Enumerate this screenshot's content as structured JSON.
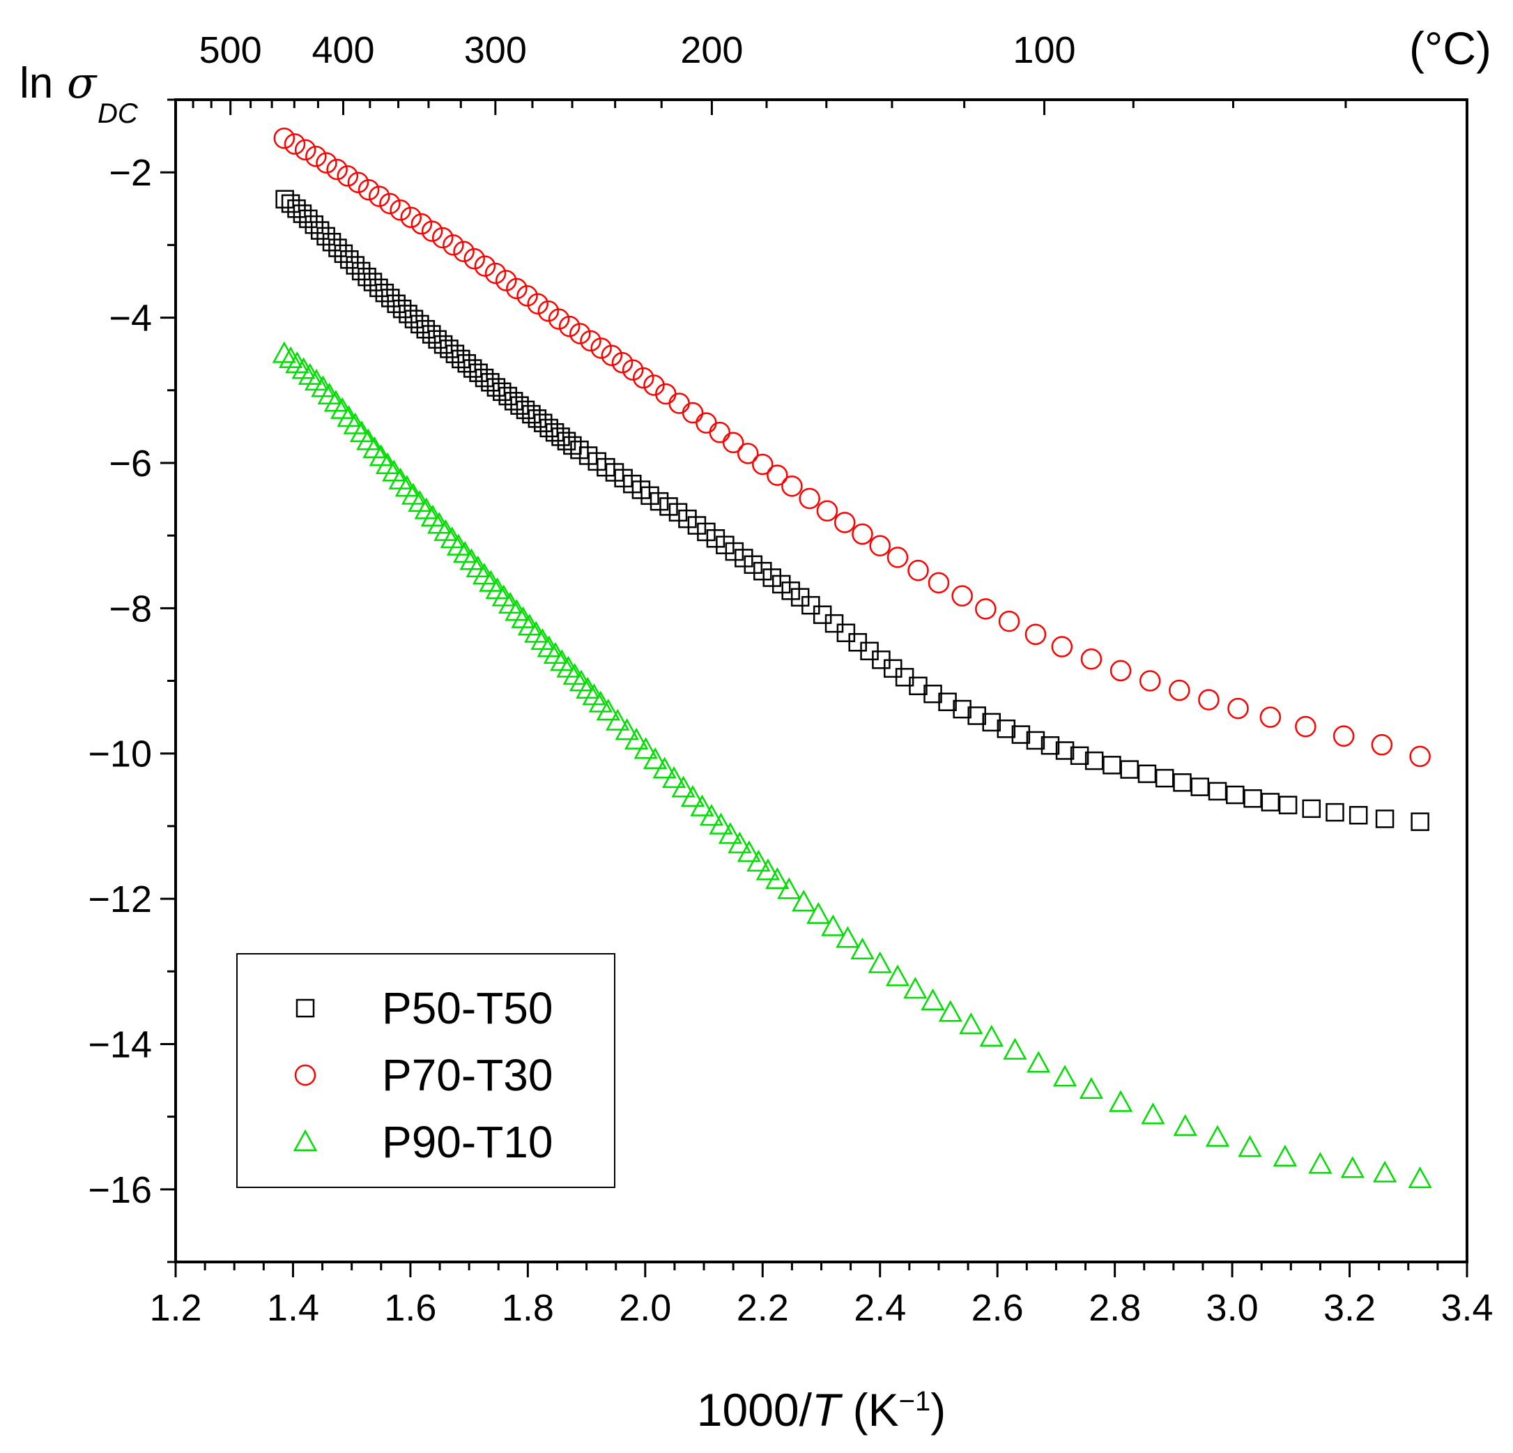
{
  "chart_data": {
    "type": "scatter",
    "x_label_prefix": "1000/",
    "x_label_var": "T",
    "x_label_unit_open": " (K",
    "x_label_exp": "−1",
    "x_label_unit_close": ")",
    "y_label_ln": "ln",
    "y_label_sigma": "σ",
    "y_label_sub": "DC",
    "top_axis_unit": "(°C)",
    "xlim": [
      1.2,
      3.4
    ],
    "ylim": [
      -17,
      -1
    ],
    "x_ticks": [
      1.2,
      1.4,
      1.6,
      1.8,
      2.0,
      2.2,
      2.4,
      2.6,
      2.8,
      3.0,
      3.2,
      3.4
    ],
    "x_tick_labels": [
      "1.2",
      "1.4",
      "1.6",
      "1.8",
      "2.0",
      "2.2",
      "2.4",
      "2.6",
      "2.8",
      "3.0",
      "3.2",
      "3.4"
    ],
    "y_ticks": [
      -2,
      -4,
      -6,
      -8,
      -10,
      -12,
      -14,
      -16
    ],
    "y_tick_labels": [
      "−2",
      "−4",
      "−6",
      "−8",
      "−10",
      "−12",
      "−14",
      "−16"
    ],
    "top_ticks_celsius": [
      500,
      400,
      300,
      200,
      100
    ],
    "top_tick_labels": [
      "500",
      "400",
      "300",
      "200",
      "100"
    ],
    "legend_position": "bottom-left",
    "series": [
      {
        "name": "P50-T50",
        "marker": "square",
        "color": "#000000",
        "points": [
          [
            1.386,
            -2.37
          ],
          [
            1.396,
            -2.43
          ],
          [
            1.406,
            -2.5
          ],
          [
            1.416,
            -2.57
          ],
          [
            1.426,
            -2.64
          ],
          [
            1.436,
            -2.72
          ],
          [
            1.446,
            -2.8
          ],
          [
            1.456,
            -2.88
          ],
          [
            1.466,
            -2.96
          ],
          [
            1.476,
            -3.04
          ],
          [
            1.486,
            -3.12
          ],
          [
            1.496,
            -3.2
          ],
          [
            1.506,
            -3.28
          ],
          [
            1.516,
            -3.36
          ],
          [
            1.526,
            -3.44
          ],
          [
            1.536,
            -3.51
          ],
          [
            1.546,
            -3.59
          ],
          [
            1.556,
            -3.66
          ],
          [
            1.566,
            -3.73
          ],
          [
            1.576,
            -3.81
          ],
          [
            1.586,
            -3.88
          ],
          [
            1.596,
            -3.95
          ],
          [
            1.606,
            -4.02
          ],
          [
            1.616,
            -4.09
          ],
          [
            1.626,
            -4.16
          ],
          [
            1.636,
            -4.23
          ],
          [
            1.646,
            -4.3
          ],
          [
            1.656,
            -4.37
          ],
          [
            1.666,
            -4.43
          ],
          [
            1.676,
            -4.5
          ],
          [
            1.686,
            -4.57
          ],
          [
            1.696,
            -4.63
          ],
          [
            1.706,
            -4.7
          ],
          [
            1.716,
            -4.76
          ],
          [
            1.726,
            -4.83
          ],
          [
            1.736,
            -4.89
          ],
          [
            1.746,
            -4.96
          ],
          [
            1.756,
            -5.02
          ],
          [
            1.766,
            -5.08
          ],
          [
            1.776,
            -5.15
          ],
          [
            1.786,
            -5.21
          ],
          [
            1.796,
            -5.27
          ],
          [
            1.806,
            -5.33
          ],
          [
            1.816,
            -5.39
          ],
          [
            1.826,
            -5.45
          ],
          [
            1.836,
            -5.52
          ],
          [
            1.846,
            -5.58
          ],
          [
            1.856,
            -5.64
          ],
          [
            1.866,
            -5.7
          ],
          [
            1.876,
            -5.76
          ],
          [
            1.888,
            -5.82
          ],
          [
            1.903,
            -5.9
          ],
          [
            1.918,
            -5.98
          ],
          [
            1.933,
            -6.06
          ],
          [
            1.948,
            -6.13
          ],
          [
            1.963,
            -6.21
          ],
          [
            1.978,
            -6.29
          ],
          [
            1.993,
            -6.37
          ],
          [
            2.008,
            -6.45
          ],
          [
            2.024,
            -6.53
          ],
          [
            2.04,
            -6.6
          ],
          [
            2.056,
            -6.68
          ],
          [
            2.072,
            -6.77
          ],
          [
            2.088,
            -6.86
          ],
          [
            2.104,
            -6.95
          ],
          [
            2.12,
            -7.04
          ],
          [
            2.136,
            -7.13
          ],
          [
            2.152,
            -7.22
          ],
          [
            2.168,
            -7.31
          ],
          [
            2.184,
            -7.4
          ],
          [
            2.2,
            -7.49
          ],
          [
            2.216,
            -7.58
          ],
          [
            2.232,
            -7.67
          ],
          [
            2.248,
            -7.76
          ],
          [
            2.264,
            -7.85
          ],
          [
            2.282,
            -7.96
          ],
          [
            2.302,
            -8.09
          ],
          [
            2.322,
            -8.21
          ],
          [
            2.342,
            -8.34
          ],
          [
            2.362,
            -8.47
          ],
          [
            2.382,
            -8.59
          ],
          [
            2.402,
            -8.71
          ],
          [
            2.422,
            -8.83
          ],
          [
            2.442,
            -8.95
          ],
          [
            2.465,
            -9.07
          ],
          [
            2.49,
            -9.18
          ],
          [
            2.515,
            -9.29
          ],
          [
            2.54,
            -9.39
          ],
          [
            2.565,
            -9.48
          ],
          [
            2.59,
            -9.57
          ],
          [
            2.615,
            -9.66
          ],
          [
            2.64,
            -9.74
          ],
          [
            2.665,
            -9.82
          ],
          [
            2.69,
            -9.89
          ],
          [
            2.715,
            -9.96
          ],
          [
            2.74,
            -10.03
          ],
          [
            2.765,
            -10.1
          ],
          [
            2.795,
            -10.16
          ],
          [
            2.825,
            -10.22
          ],
          [
            2.855,
            -10.28
          ],
          [
            2.885,
            -10.34
          ],
          [
            2.915,
            -10.4
          ],
          [
            2.945,
            -10.46
          ],
          [
            2.975,
            -10.52
          ],
          [
            3.005,
            -10.57
          ],
          [
            3.035,
            -10.62
          ],
          [
            3.065,
            -10.67
          ],
          [
            3.095,
            -10.71
          ],
          [
            3.135,
            -10.76
          ],
          [
            3.175,
            -10.81
          ],
          [
            3.215,
            -10.85
          ],
          [
            3.26,
            -10.9
          ],
          [
            3.32,
            -10.94
          ]
        ]
      },
      {
        "name": "P70-T30",
        "marker": "circle",
        "color": "#ff0000",
        "points": [
          [
            1.385,
            -1.53
          ],
          [
            1.403,
            -1.61
          ],
          [
            1.421,
            -1.69
          ],
          [
            1.439,
            -1.78
          ],
          [
            1.457,
            -1.87
          ],
          [
            1.475,
            -1.96
          ],
          [
            1.493,
            -2.05
          ],
          [
            1.511,
            -2.14
          ],
          [
            1.529,
            -2.24
          ],
          [
            1.547,
            -2.33
          ],
          [
            1.565,
            -2.43
          ],
          [
            1.583,
            -2.52
          ],
          [
            1.601,
            -2.62
          ],
          [
            1.619,
            -2.71
          ],
          [
            1.637,
            -2.81
          ],
          [
            1.655,
            -2.9
          ],
          [
            1.673,
            -3.0
          ],
          [
            1.691,
            -3.09
          ],
          [
            1.709,
            -3.19
          ],
          [
            1.727,
            -3.29
          ],
          [
            1.745,
            -3.39
          ],
          [
            1.763,
            -3.49
          ],
          [
            1.781,
            -3.6
          ],
          [
            1.799,
            -3.7
          ],
          [
            1.817,
            -3.81
          ],
          [
            1.835,
            -3.91
          ],
          [
            1.853,
            -4.02
          ],
          [
            1.871,
            -4.12
          ],
          [
            1.889,
            -4.22
          ],
          [
            1.907,
            -4.32
          ],
          [
            1.925,
            -4.42
          ],
          [
            1.943,
            -4.52
          ],
          [
            1.961,
            -4.62
          ],
          [
            1.979,
            -4.72
          ],
          [
            1.997,
            -4.83
          ],
          [
            2.015,
            -4.93
          ],
          [
            2.035,
            -5.05
          ],
          [
            2.058,
            -5.18
          ],
          [
            2.081,
            -5.31
          ],
          [
            2.104,
            -5.45
          ],
          [
            2.127,
            -5.58
          ],
          [
            2.15,
            -5.72
          ],
          [
            2.175,
            -5.87
          ],
          [
            2.2,
            -6.02
          ],
          [
            2.225,
            -6.17
          ],
          [
            2.25,
            -6.32
          ],
          [
            2.28,
            -6.49
          ],
          [
            2.31,
            -6.66
          ],
          [
            2.34,
            -6.82
          ],
          [
            2.37,
            -6.98
          ],
          [
            2.4,
            -7.14
          ],
          [
            2.43,
            -7.3
          ],
          [
            2.465,
            -7.48
          ],
          [
            2.5,
            -7.65
          ],
          [
            2.54,
            -7.83
          ],
          [
            2.58,
            -8.01
          ],
          [
            2.62,
            -8.18
          ],
          [
            2.665,
            -8.36
          ],
          [
            2.71,
            -8.53
          ],
          [
            2.76,
            -8.7
          ],
          [
            2.81,
            -8.86
          ],
          [
            2.86,
            -9.0
          ],
          [
            2.91,
            -9.13
          ],
          [
            2.96,
            -9.26
          ],
          [
            3.01,
            -9.38
          ],
          [
            3.065,
            -9.5
          ],
          [
            3.125,
            -9.63
          ],
          [
            3.19,
            -9.76
          ],
          [
            3.255,
            -9.88
          ],
          [
            3.32,
            -10.04
          ]
        ]
      },
      {
        "name": "P90-T10",
        "marker": "triangle",
        "color": "#00dd00",
        "points": [
          [
            1.385,
            -4.5
          ],
          [
            1.396,
            -4.57
          ],
          [
            1.407,
            -4.64
          ],
          [
            1.418,
            -4.72
          ],
          [
            1.429,
            -4.8
          ],
          [
            1.44,
            -4.88
          ],
          [
            1.451,
            -4.97
          ],
          [
            1.462,
            -5.07
          ],
          [
            1.473,
            -5.17
          ],
          [
            1.484,
            -5.27
          ],
          [
            1.495,
            -5.38
          ],
          [
            1.506,
            -5.48
          ],
          [
            1.517,
            -5.59
          ],
          [
            1.528,
            -5.7
          ],
          [
            1.539,
            -5.81
          ],
          [
            1.55,
            -5.92
          ],
          [
            1.561,
            -6.03
          ],
          [
            1.572,
            -6.13
          ],
          [
            1.583,
            -6.24
          ],
          [
            1.594,
            -6.34
          ],
          [
            1.605,
            -6.45
          ],
          [
            1.616,
            -6.55
          ],
          [
            1.627,
            -6.65
          ],
          [
            1.638,
            -6.75
          ],
          [
            1.649,
            -6.85
          ],
          [
            1.66,
            -6.95
          ],
          [
            1.671,
            -7.05
          ],
          [
            1.682,
            -7.15
          ],
          [
            1.693,
            -7.25
          ],
          [
            1.704,
            -7.35
          ],
          [
            1.715,
            -7.45
          ],
          [
            1.726,
            -7.55
          ],
          [
            1.737,
            -7.65
          ],
          [
            1.748,
            -7.75
          ],
          [
            1.759,
            -7.85
          ],
          [
            1.77,
            -7.95
          ],
          [
            1.781,
            -8.05
          ],
          [
            1.792,
            -8.15
          ],
          [
            1.803,
            -8.25
          ],
          [
            1.814,
            -8.35
          ],
          [
            1.825,
            -8.45
          ],
          [
            1.836,
            -8.55
          ],
          [
            1.847,
            -8.64
          ],
          [
            1.858,
            -8.74
          ],
          [
            1.869,
            -8.83
          ],
          [
            1.88,
            -8.93
          ],
          [
            1.891,
            -9.02
          ],
          [
            1.902,
            -9.12
          ],
          [
            1.913,
            -9.21
          ],
          [
            1.924,
            -9.31
          ],
          [
            1.937,
            -9.42
          ],
          [
            1.953,
            -9.56
          ],
          [
            1.969,
            -9.69
          ],
          [
            1.985,
            -9.82
          ],
          [
            2.001,
            -9.95
          ],
          [
            2.017,
            -10.09
          ],
          [
            2.033,
            -10.22
          ],
          [
            2.049,
            -10.35
          ],
          [
            2.065,
            -10.48
          ],
          [
            2.081,
            -10.61
          ],
          [
            2.097,
            -10.74
          ],
          [
            2.113,
            -10.87
          ],
          [
            2.129,
            -10.99
          ],
          [
            2.145,
            -11.12
          ],
          [
            2.161,
            -11.25
          ],
          [
            2.177,
            -11.37
          ],
          [
            2.193,
            -11.5
          ],
          [
            2.209,
            -11.62
          ],
          [
            2.225,
            -11.74
          ],
          [
            2.245,
            -11.88
          ],
          [
            2.27,
            -12.05
          ],
          [
            2.295,
            -12.22
          ],
          [
            2.32,
            -12.39
          ],
          [
            2.345,
            -12.55
          ],
          [
            2.37,
            -12.71
          ],
          [
            2.4,
            -12.9
          ],
          [
            2.43,
            -13.08
          ],
          [
            2.46,
            -13.25
          ],
          [
            2.49,
            -13.41
          ],
          [
            2.52,
            -13.57
          ],
          [
            2.555,
            -13.74
          ],
          [
            2.59,
            -13.91
          ],
          [
            2.63,
            -14.09
          ],
          [
            2.67,
            -14.27
          ],
          [
            2.715,
            -14.46
          ],
          [
            2.76,
            -14.63
          ],
          [
            2.81,
            -14.81
          ],
          [
            2.865,
            -14.98
          ],
          [
            2.92,
            -15.14
          ],
          [
            2.975,
            -15.29
          ],
          [
            3.03,
            -15.43
          ],
          [
            3.09,
            -15.56
          ],
          [
            3.15,
            -15.66
          ],
          [
            3.205,
            -15.72
          ],
          [
            3.26,
            -15.78
          ],
          [
            3.32,
            -15.86
          ]
        ]
      }
    ]
  }
}
